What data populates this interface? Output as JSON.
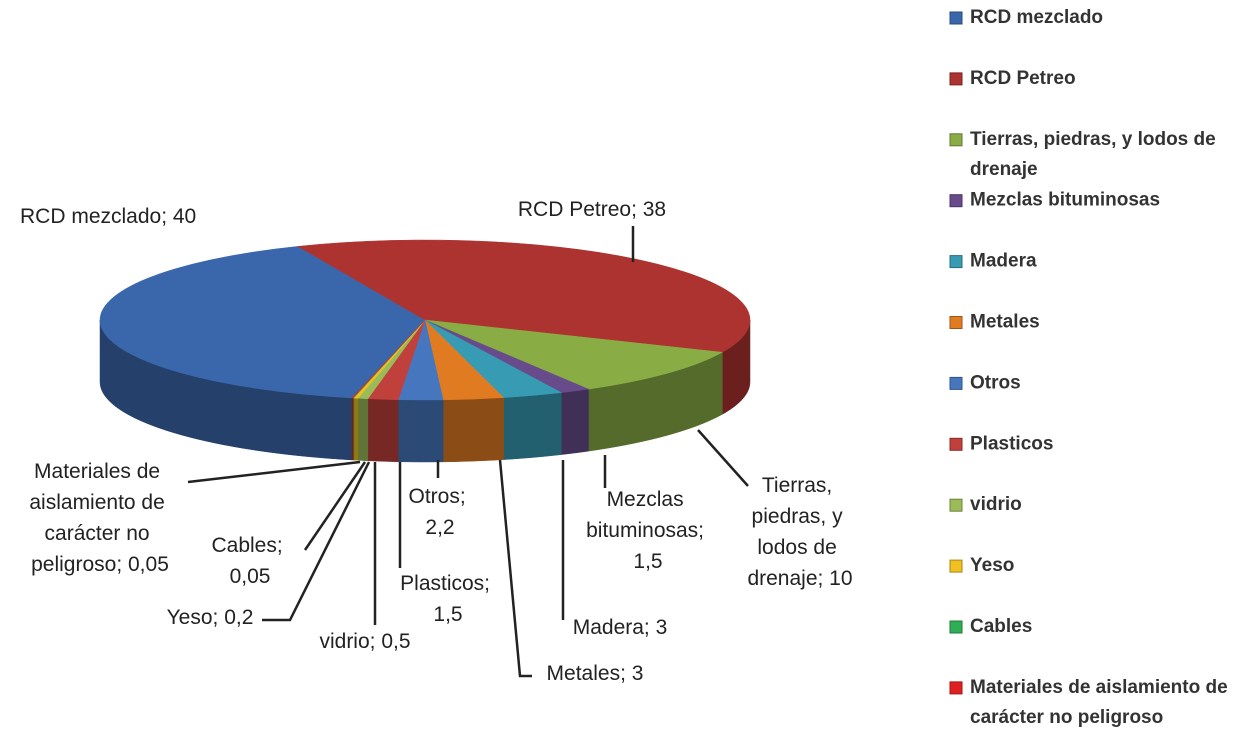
{
  "chart_data": {
    "type": "pie3d",
    "categories": [
      "RCD mezclado",
      "RCD Petreo",
      "Tierras, piedras, y lodos de drenaje",
      "Mezclas bituminosas",
      "Madera",
      "Metales",
      "Otros",
      "Plasticos",
      "vidrio",
      "Yeso",
      "Cables",
      "Materiales de aislamiento de carácter no peligroso"
    ],
    "values": [
      40,
      38,
      10,
      1.5,
      3,
      3,
      2.2,
      1.5,
      0.5,
      0.2,
      0.05,
      0.05
    ],
    "value_labels": [
      "RCD mezclado; 40",
      "RCD Petreo; 38",
      "Tierras, piedras, y lodos de drenaje; 10",
      "Mezclas bituminosas; 1,5",
      "Madera; 3",
      "Metales; 3",
      "Otros; 2,2",
      "Plasticos; 1,5",
      "vidrio; 0,5",
      "Yeso; 0,2",
      "Cables; 0,05",
      "Materiales de aislamiento de carácter no peligroso; 0,05"
    ],
    "colors": [
      "#3a67ac",
      "#ad3330",
      "#89ac45",
      "#674b8a",
      "#379bb3",
      "#e07b22",
      "#4677be",
      "#c0403c",
      "#9bbb59",
      "#f0c020",
      "#2fae55",
      "#e02020"
    ],
    "legend": "right"
  }
}
